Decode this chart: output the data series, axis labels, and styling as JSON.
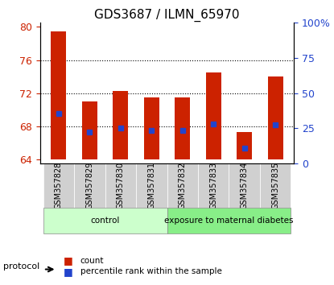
{
  "title": "GDS3687 / ILMN_65970",
  "samples": [
    "GSM357828",
    "GSM357829",
    "GSM357830",
    "GSM357831",
    "GSM357832",
    "GSM357833",
    "GSM357834",
    "GSM357835"
  ],
  "bar_tops": [
    79.5,
    71.0,
    72.3,
    71.5,
    71.5,
    74.5,
    67.3,
    74.0
  ],
  "blue_markers": [
    69.5,
    67.3,
    67.8,
    67.5,
    67.5,
    68.3,
    65.3,
    68.2
  ],
  "bar_base": 64.0,
  "ylim_left": [
    63.5,
    80.5
  ],
  "yticks_left": [
    64,
    68,
    72,
    76,
    80
  ],
  "ylim_right": [
    0,
    100
  ],
  "yticks_right": [
    0,
    25,
    50,
    75,
    100
  ],
  "yticklabels_right": [
    "0",
    "25",
    "50",
    "75",
    "100%"
  ],
  "bar_color": "#cc2200",
  "marker_color": "#2244cc",
  "bar_width": 0.5,
  "groups": [
    {
      "label": "control",
      "start": 0,
      "end": 4,
      "color": "#ccffcc"
    },
    {
      "label": "exposure to maternal diabetes",
      "start": 4,
      "end": 8,
      "color": "#88ee88"
    }
  ],
  "protocol_label": "protocol",
  "legend_items": [
    {
      "color": "#cc2200",
      "label": "count"
    },
    {
      "color": "#2244cc",
      "label": "percentile rank within the sample"
    }
  ],
  "grid_color": "black",
  "grid_linestyle": "dotted",
  "tick_label_color_left": "#cc2200",
  "tick_label_color_right": "#2244cc",
  "background_color": "#ffffff",
  "plot_bg": "#ffffff"
}
